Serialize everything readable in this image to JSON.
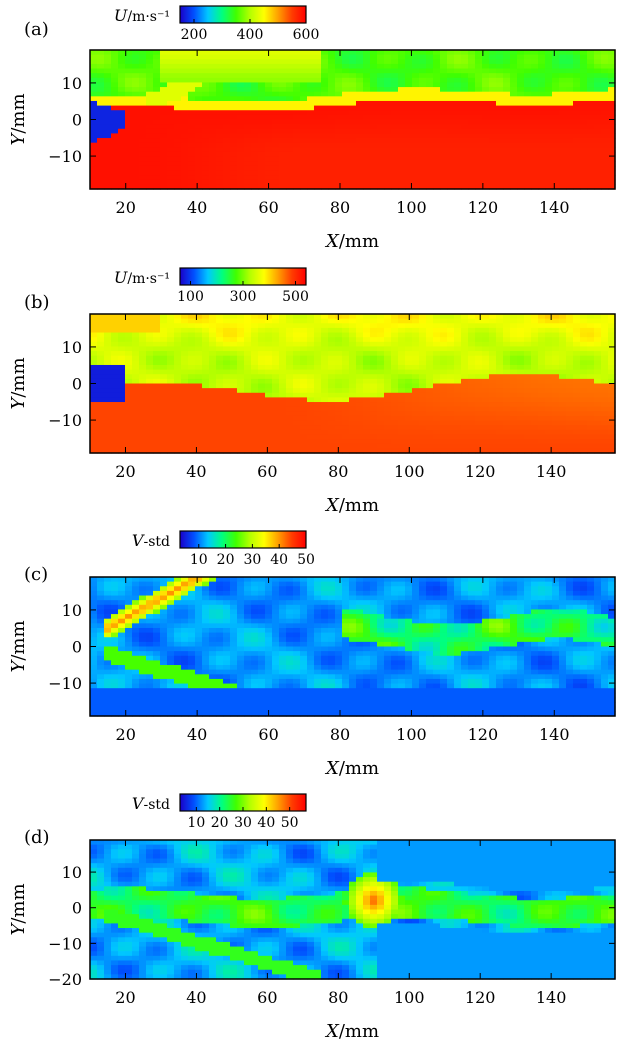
{
  "colormap": [
    "#1a00c8",
    "#0050ff",
    "#00c8ff",
    "#00ff80",
    "#40ff00",
    "#b4ff00",
    "#ffff00",
    "#ffa000",
    "#ff3c00",
    "#ff0000"
  ],
  "chart_data": [
    {
      "type": "heatmap",
      "panel_label": "(a)",
      "colorbar": {
        "label_var": "U",
        "label_unit": "/m·s⁻¹",
        "range": [
          150,
          600
        ],
        "ticks": [
          200,
          400,
          600
        ],
        "tick_labels": [
          "200",
          "400",
          "600"
        ]
      },
      "xlabel": "X/mm",
      "ylabel": "Y/mm",
      "xlim": [
        10,
        157
      ],
      "ylim": [
        -19,
        19
      ],
      "xticks": [
        20,
        40,
        60,
        80,
        100,
        120,
        140
      ],
      "xtick_labels": [
        "20",
        "40",
        "60",
        "80",
        "100",
        "120",
        "140"
      ],
      "yticks": [
        10,
        0,
        -10
      ],
      "ytick_labels": [
        "10",
        "0",
        "−10"
      ]
    },
    {
      "type": "heatmap",
      "panel_label": "(b)",
      "colorbar": {
        "label_var": "U",
        "label_unit": "/m·s⁻¹",
        "range": [
          60,
          540
        ],
        "ticks": [
          100,
          300,
          500
        ],
        "tick_labels": [
          "100",
          "300",
          "500"
        ]
      },
      "xlabel": "X/mm",
      "ylabel": "Y/mm",
      "xlim": [
        10,
        158
      ],
      "ylim": [
        -19,
        19
      ],
      "xticks": [
        20,
        40,
        60,
        80,
        100,
        120,
        140
      ],
      "xtick_labels": [
        "20",
        "40",
        "60",
        "80",
        "100",
        "120",
        "140"
      ],
      "yticks": [
        10,
        0,
        -10
      ],
      "ytick_labels": [
        "10",
        "0",
        "−10"
      ]
    },
    {
      "type": "heatmap",
      "panel_label": "(c)",
      "colorbar": {
        "label_var": "V",
        "label_unit": "-std",
        "range": [
          3,
          50
        ],
        "ticks": [
          10,
          20,
          30,
          40,
          50
        ],
        "tick_labels": [
          "10",
          "20",
          "30",
          "40",
          "50"
        ]
      },
      "xlabel": "X/mm",
      "ylabel": "Y/mm",
      "xlim": [
        10,
        157
      ],
      "ylim": [
        -19,
        19
      ],
      "xticks": [
        20,
        40,
        60,
        80,
        100,
        120,
        140
      ],
      "xtick_labels": [
        "20",
        "40",
        "60",
        "80",
        "100",
        "120",
        "140"
      ],
      "yticks": [
        10,
        0,
        -10
      ],
      "ytick_labels": [
        "10",
        "0",
        "−10"
      ]
    },
    {
      "type": "heatmap",
      "panel_label": "(d)",
      "colorbar": {
        "label_var": "V",
        "label_unit": "-std",
        "range": [
          3,
          57
        ],
        "ticks": [
          10,
          20,
          30,
          40,
          50
        ],
        "tick_labels": [
          "10",
          "20",
          "30",
          "40",
          "50"
        ]
      },
      "xlabel": "X/mm",
      "ylabel": "Y/mm",
      "xlim": [
        10,
        158
      ],
      "ylim": [
        -20,
        19
      ],
      "xticks": [
        20,
        40,
        60,
        80,
        100,
        120,
        140
      ],
      "xtick_labels": [
        "20",
        "40",
        "60",
        "80",
        "100",
        "120",
        "140"
      ],
      "yticks": [
        10,
        0,
        -10,
        -20
      ],
      "ytick_labels": [
        "10",
        "0",
        "−10",
        "−20"
      ]
    }
  ]
}
